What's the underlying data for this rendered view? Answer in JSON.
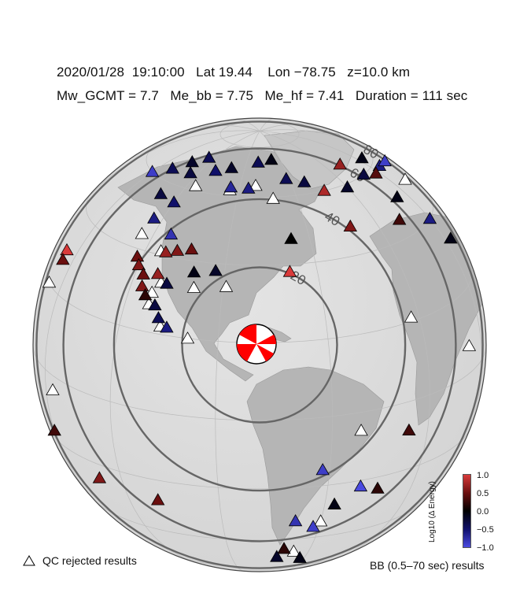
{
  "header": {
    "line1": "2020/01/28  19:10:00   Lat 19.44    Lon −78.75   z=10.0 km",
    "line2": "Mw_GCMT = 7.7   Me_bb = 7.75   Me_hf = 7.41   Duration = 111 sec"
  },
  "map": {
    "projection": "orthographic",
    "center": {
      "lat": 19.44,
      "lon": -78.75
    },
    "ring_labels": [
      "20",
      "40",
      "60",
      "80"
    ],
    "colors": {
      "ring": "#666666",
      "graticule": "#bbbbbb",
      "land": "#b9b9b9",
      "ocean": "#dcdcdc",
      "beachball": "#ff0000"
    },
    "stations": [
      {
        "lat": 60.0,
        "lon": -150.0,
        "v": -0.9
      },
      {
        "lat": 64.0,
        "lon": -140.0,
        "v": -0.4
      },
      {
        "lat": 56.0,
        "lon": -130.0,
        "v": -0.3
      },
      {
        "lat": 68.5,
        "lon": -133.0,
        "v": -0.2
      },
      {
        "lat": 65.0,
        "lon": -125.0,
        "v": -0.3
      },
      {
        "lat": 55.0,
        "lon": -120.0,
        "v": -0.5
      },
      {
        "lat": 49.0,
        "lon": -124.0,
        "v": -0.6
      },
      {
        "lat": 72.0,
        "lon": -125.0,
        "v": -0.4
      },
      {
        "lat": 70.0,
        "lon": -100.0,
        "v": -0.2
      },
      {
        "lat": 68.0,
        "lon": -110.0,
        "v": -0.5
      },
      {
        "lat": 73.0,
        "lon": -80.0,
        "v": -0.4
      },
      {
        "lat": 74.0,
        "lon": -68.0,
        "v": -0.1
      },
      {
        "lat": 66.0,
        "lon": -62.0,
        "v": -0.4
      },
      {
        "lat": 64.0,
        "lon": -52.0,
        "v": -0.3
      },
      {
        "lat": 66.0,
        "lon": -18.0,
        "v": 0.7
      },
      {
        "lat": 60.0,
        "lon": -44.0,
        "v": 0.8
      },
      {
        "lat": 59.0,
        "lon": -30.0,
        "v": -0.2
      },
      {
        "lat": 60.0,
        "lon": -12.0,
        "v": -0.3
      },
      {
        "lat": 63.0,
        "lon": 5.0,
        "v": -0.1
      },
      {
        "lat": 58.0,
        "lon": 8.0,
        "v": -0.6
      },
      {
        "lat": 56.0,
        "lon": 20.0,
        "v": -0.9
      },
      {
        "lat": 58.0,
        "lon": -3.0,
        "v": 0.4
      },
      {
        "lat": 63.0,
        "lon": -95.0,
        "v": -0.7
      },
      {
        "lat": 63.0,
        "lon": -85.0,
        "v": -0.6
      },
      {
        "lat": 46.0,
        "lon": -113.0,
        "v": -0.8
      },
      {
        "lat": 42.0,
        "lon": -108.0,
        "v": 0.6
      },
      {
        "lat": 41.0,
        "lon": -112.0,
        "v": 0.7
      },
      {
        "lat": 43.0,
        "lon": -103.0,
        "v": 0.5
      },
      {
        "lat": 38.0,
        "lon": -122.0,
        "v": 0.5
      },
      {
        "lat": 36.0,
        "lon": -120.0,
        "v": 0.6
      },
      {
        "lat": 34.0,
        "lon": -117.0,
        "v": 0.5
      },
      {
        "lat": 35.0,
        "lon": -112.0,
        "v": 0.7
      },
      {
        "lat": 33.0,
        "lon": -108.0,
        "v": -0.3
      },
      {
        "lat": 31.0,
        "lon": -116.0,
        "v": 0.6
      },
      {
        "lat": 29.0,
        "lon": -114.0,
        "v": 0.2
      },
      {
        "lat": 37.0,
        "lon": -100.0,
        "v": -0.1
      },
      {
        "lat": 38.0,
        "lon": -93.0,
        "v": -0.2
      },
      {
        "lat": 38.0,
        "lon": -69.0,
        "v": 1.0
      },
      {
        "lat": 47.0,
        "lon": -67.0,
        "v": 0.0
      },
      {
        "lat": 27.0,
        "lon": -110.0,
        "v": -0.3
      },
      {
        "lat": 24.0,
        "lon": -108.0,
        "v": -0.4
      },
      {
        "lat": 22.0,
        "lon": -105.0,
        "v": -0.6
      },
      {
        "lat": 48.0,
        "lon": -42.0,
        "v": 0.6
      },
      {
        "lat": 45.0,
        "lon": -18.0,
        "v": 0.3
      },
      {
        "lat": 50.0,
        "lon": -8.0,
        "v": -0.1
      },
      {
        "lat": 40.0,
        "lon": 0.0,
        "v": -0.6
      },
      {
        "lat": 32.0,
        "lon": 5.0,
        "v": -0.1
      },
      {
        "lat": 30.0,
        "lon": -158.0,
        "v": 1.0
      },
      {
        "lat": 27.5,
        "lon": -157.0,
        "v": 0.5
      },
      {
        "lat": -8.0,
        "lon": -37.0,
        "v": 0.3
      },
      {
        "lat": -15.0,
        "lon": -62.0,
        "v": -0.9
      },
      {
        "lat": -24.0,
        "lon": -44.0,
        "v": 0.2
      },
      {
        "lat": -22.0,
        "lon": -50.0,
        "v": -1.0
      },
      {
        "lat": -27.0,
        "lon": -57.0,
        "v": -0.1
      },
      {
        "lat": -32.0,
        "lon": -68.0,
        "v": -0.8
      },
      {
        "lat": -35.0,
        "lon": -62.0,
        "v": -0.9
      },
      {
        "lat": -45.0,
        "lon": -70.0,
        "v": 0.2
      },
      {
        "lat": -50.0,
        "lon": -72.0,
        "v": -0.2
      },
      {
        "lat": -52.0,
        "lon": -62.0,
        "v": -0.1
      },
      {
        "lat": -17.0,
        "lon": -150.0,
        "v": 0.3
      },
      {
        "lat": -25.0,
        "lon": -130.0,
        "v": 0.6
      },
      {
        "lat": -27.0,
        "lon": -109.0,
        "v": 0.5
      }
    ],
    "rejected_stations": [
      {
        "lat": 61.5,
        "lon": -115.0
      },
      {
        "lat": 62.0,
        "lon": -95.0
      },
      {
        "lat": 64.0,
        "lon": -81.0
      },
      {
        "lat": 59.5,
        "lon": -72.0
      },
      {
        "lat": 44.0,
        "lon": -125.0
      },
      {
        "lat": 41.0,
        "lon": -114.0
      },
      {
        "lat": 33.0,
        "lon": -110.0
      },
      {
        "lat": 30.0,
        "lon": -112.0
      },
      {
        "lat": 27.0,
        "lon": -112.0
      },
      {
        "lat": 22.0,
        "lon": -107.0
      },
      {
        "lat": 33.0,
        "lon": -99.0
      },
      {
        "lat": 34.0,
        "lon": -89.0
      },
      {
        "lat": 20.0,
        "lon": -98.5
      },
      {
        "lat": 21.0,
        "lon": -33.0
      },
      {
        "lat": 50.0,
        "lon": 13.0
      },
      {
        "lat": -5.0,
        "lon": -52.0
      },
      {
        "lat": 20.0,
        "lon": -160.0
      },
      {
        "lat": -4.0,
        "lon": -145.0
      },
      {
        "lat": 7.0,
        "lon": -10.0
      },
      {
        "lat": -33.0,
        "lon": -60.0
      },
      {
        "lat": -47.0,
        "lon": -66.0
      }
    ]
  },
  "legend": {
    "qc_label": "QC rejected results",
    "colorbar_title": "Log10 (Δ Energy)",
    "colorbar_ticks": [
      "1.0",
      "0.5",
      "0.0",
      "−0.5",
      "−1.0"
    ],
    "caption": "BB (0.5–70 sec) results"
  }
}
